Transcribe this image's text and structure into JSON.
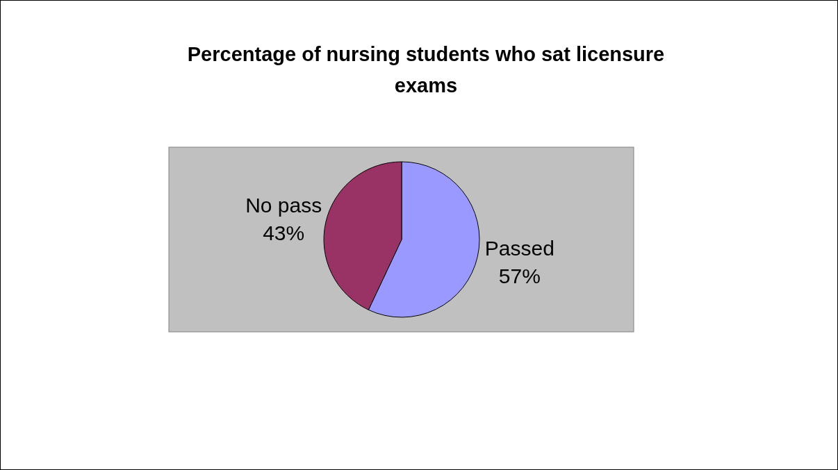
{
  "chart_data": {
    "type": "pie",
    "title": "Percentage of nursing students who sat licensure exams",
    "categories": [
      "Passed",
      "No pass"
    ],
    "values": [
      57,
      43
    ],
    "colors": [
      "#9999ff",
      "#993366"
    ],
    "value_labels": [
      "57%",
      "43%"
    ]
  }
}
